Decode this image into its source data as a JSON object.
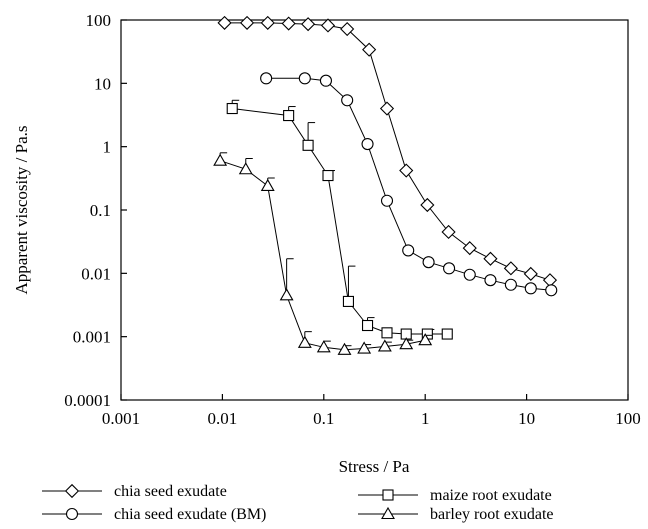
{
  "chart_data": {
    "type": "scatter",
    "xlabel": "Stress / Pa",
    "ylabel": "Apparent viscosity / Pa.s",
    "xscale": "log",
    "yscale": "log",
    "xlim": [
      0.001,
      100
    ],
    "ylim": [
      0.0001,
      100
    ],
    "grid": false,
    "legend_placement": "bottom",
    "x_ticks": [
      {
        "value": 0.001,
        "label": "0.001"
      },
      {
        "value": 0.01,
        "label": "0.01"
      },
      {
        "value": 0.1,
        "label": "0.1"
      },
      {
        "value": 1,
        "label": "1"
      },
      {
        "value": 10,
        "label": "10"
      },
      {
        "value": 100,
        "label": "100"
      }
    ],
    "y_ticks": [
      {
        "value": 0.0001,
        "label": "0.0001"
      },
      {
        "value": 0.001,
        "label": "0.001"
      },
      {
        "value": 0.01,
        "label": "0.01"
      },
      {
        "value": 0.1,
        "label": "0.1"
      },
      {
        "value": 1,
        "label": "1"
      },
      {
        "value": 10,
        "label": "10"
      },
      {
        "value": 100,
        "label": "100"
      }
    ],
    "series": [
      {
        "name": "chia seed exudate",
        "marker": "diamond",
        "points": [
          {
            "x": 0.0105,
            "y": 90
          },
          {
            "x": 0.0175,
            "y": 90
          },
          {
            "x": 0.028,
            "y": 90
          },
          {
            "x": 0.045,
            "y": 88
          },
          {
            "x": 0.07,
            "y": 86
          },
          {
            "x": 0.11,
            "y": 82
          },
          {
            "x": 0.17,
            "y": 72
          },
          {
            "x": 0.28,
            "y": 34
          },
          {
            "x": 0.42,
            "y": 4
          },
          {
            "x": 0.65,
            "y": 0.42
          },
          {
            "x": 1.05,
            "y": 0.12
          },
          {
            "x": 1.7,
            "y": 0.045
          },
          {
            "x": 2.75,
            "y": 0.025
          },
          {
            "x": 4.4,
            "y": 0.017
          },
          {
            "x": 7,
            "y": 0.012
          },
          {
            "x": 11,
            "y": 0.0098
          },
          {
            "x": 17,
            "y": 0.0078
          }
        ],
        "errors": []
      },
      {
        "name": "chia seed exudate (BM)",
        "marker": "circle",
        "points": [
          {
            "x": 0.027,
            "y": 12
          },
          {
            "x": 0.065,
            "y": 12
          },
          {
            "x": 0.105,
            "y": 11
          },
          {
            "x": 0.17,
            "y": 5.4
          },
          {
            "x": 0.27,
            "y": 1.1
          },
          {
            "x": 0.42,
            "y": 0.14
          },
          {
            "x": 0.68,
            "y": 0.023
          },
          {
            "x": 1.08,
            "y": 0.015
          },
          {
            "x": 1.72,
            "y": 0.012
          },
          {
            "x": 2.75,
            "y": 0.0095
          },
          {
            "x": 4.4,
            "y": 0.0078
          },
          {
            "x": 7,
            "y": 0.0066
          },
          {
            "x": 11,
            "y": 0.0058
          },
          {
            "x": 17.5,
            "y": 0.0054
          }
        ],
        "errors": []
      },
      {
        "name": "maize root exudate",
        "marker": "square",
        "points": [
          {
            "x": 0.0125,
            "y": 4
          },
          {
            "x": 0.045,
            "y": 3.1
          },
          {
            "x": 0.07,
            "y": 1.05
          },
          {
            "x": 0.11,
            "y": 0.35
          },
          {
            "x": 0.175,
            "y": 0.0036
          },
          {
            "x": 0.27,
            "y": 0.0015
          },
          {
            "x": 0.42,
            "y": 0.00115
          },
          {
            "x": 0.65,
            "y": 0.0011
          },
          {
            "x": 1.05,
            "y": 0.0011
          },
          {
            "x": 1.65,
            "y": 0.0011
          }
        ],
        "errors": [
          {
            "x": 0.0125,
            "upper": 5.4
          },
          {
            "x": 0.045,
            "upper": 4.3
          },
          {
            "x": 0.07,
            "upper": 2.4
          },
          {
            "x": 0.11,
            "upper": 0.42
          },
          {
            "x": 0.175,
            "upper": 0.013
          },
          {
            "x": 0.27,
            "upper": 0.002
          },
          {
            "x": 1.05,
            "upper": 0.0013
          }
        ]
      },
      {
        "name": "barley root exudate",
        "marker": "triangle",
        "points": [
          {
            "x": 0.0095,
            "y": 0.6
          },
          {
            "x": 0.017,
            "y": 0.44
          },
          {
            "x": 0.028,
            "y": 0.24
          },
          {
            "x": 0.043,
            "y": 0.0045
          },
          {
            "x": 0.065,
            "y": 0.0008
          },
          {
            "x": 0.1,
            "y": 0.00068
          },
          {
            "x": 0.16,
            "y": 0.00062
          },
          {
            "x": 0.25,
            "y": 0.00065
          },
          {
            "x": 0.4,
            "y": 0.0007
          },
          {
            "x": 0.65,
            "y": 0.00076
          },
          {
            "x": 1.0,
            "y": 0.00088
          }
        ],
        "errors": [
          {
            "x": 0.0095,
            "upper": 0.8
          },
          {
            "x": 0.017,
            "upper": 0.65
          },
          {
            "x": 0.028,
            "upper": 0.32
          },
          {
            "x": 0.043,
            "upper": 0.017
          },
          {
            "x": 0.065,
            "upper": 0.0012
          },
          {
            "x": 0.1,
            "upper": 0.00085
          },
          {
            "x": 0.16,
            "upper": 0.00072
          },
          {
            "x": 0.25,
            "upper": 0.00075
          },
          {
            "x": 0.4,
            "upper": 0.00082
          },
          {
            "x": 0.65,
            "upper": 0.00088
          },
          {
            "x": 1.0,
            "upper": 0.00105
          }
        ]
      }
    ]
  }
}
